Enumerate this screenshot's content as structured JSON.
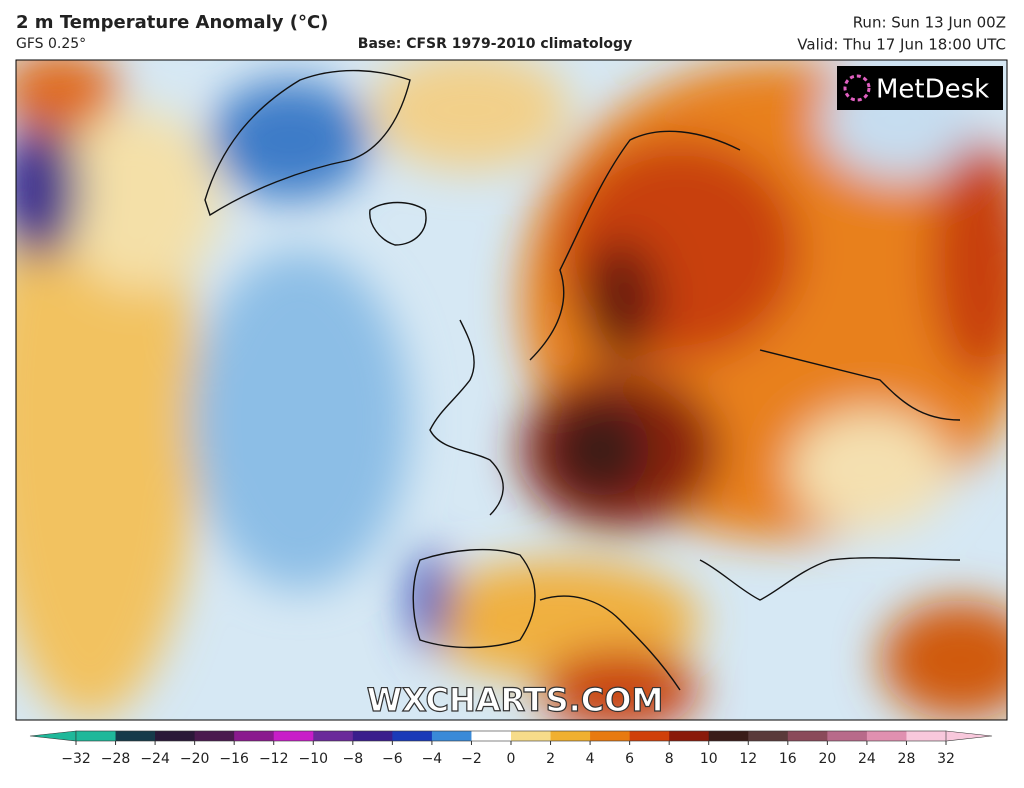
{
  "header": {
    "title": "2 m Temperature Anomaly (°C)",
    "model": "GFS 0.25°",
    "base": "Base: CFSR 1979-2010 climatology",
    "run": "Run: Sun 13 Jun 00Z",
    "valid": "Valid: Thu 17 Jun 18:00 UTC"
  },
  "logo": "MetDesk",
  "watermark": "WXCHARTS.COM",
  "colorbar": {
    "ticks": [
      {
        "value": -32,
        "label": "−32"
      },
      {
        "value": -28,
        "label": "−28"
      },
      {
        "value": -24,
        "label": "−24"
      },
      {
        "value": -20,
        "label": "−20"
      },
      {
        "value": -16,
        "label": "−16"
      },
      {
        "value": -12,
        "label": "−12"
      },
      {
        "value": -10,
        "label": "−10"
      },
      {
        "value": -8,
        "label": "−8"
      },
      {
        "value": -6,
        "label": "−6"
      },
      {
        "value": -4,
        "label": "−4"
      },
      {
        "value": -2,
        "label": "−2"
      },
      0,
      2,
      4,
      6,
      8,
      10,
      12,
      16,
      20,
      24,
      28,
      32
    ],
    "colors": [
      "#1fb89a",
      "#163a4a",
      "#2a1838",
      "#4a1a4e",
      "#8a1a8e",
      "#c81ec8",
      "#6a2a9a",
      "#3a1e8c",
      "#1a3ab8",
      "#3a8ad8",
      "#a8d0ec",
      "#ffffff",
      "#f6dc8a",
      "#f0b030",
      "#e87a10",
      "#d0400a",
      "#8a1a0a",
      "#3a1c18",
      "#5a3a3a",
      "#8a4a5a",
      "#b86a8a",
      "#e090b0",
      "#f8c8dc"
    ]
  }
}
